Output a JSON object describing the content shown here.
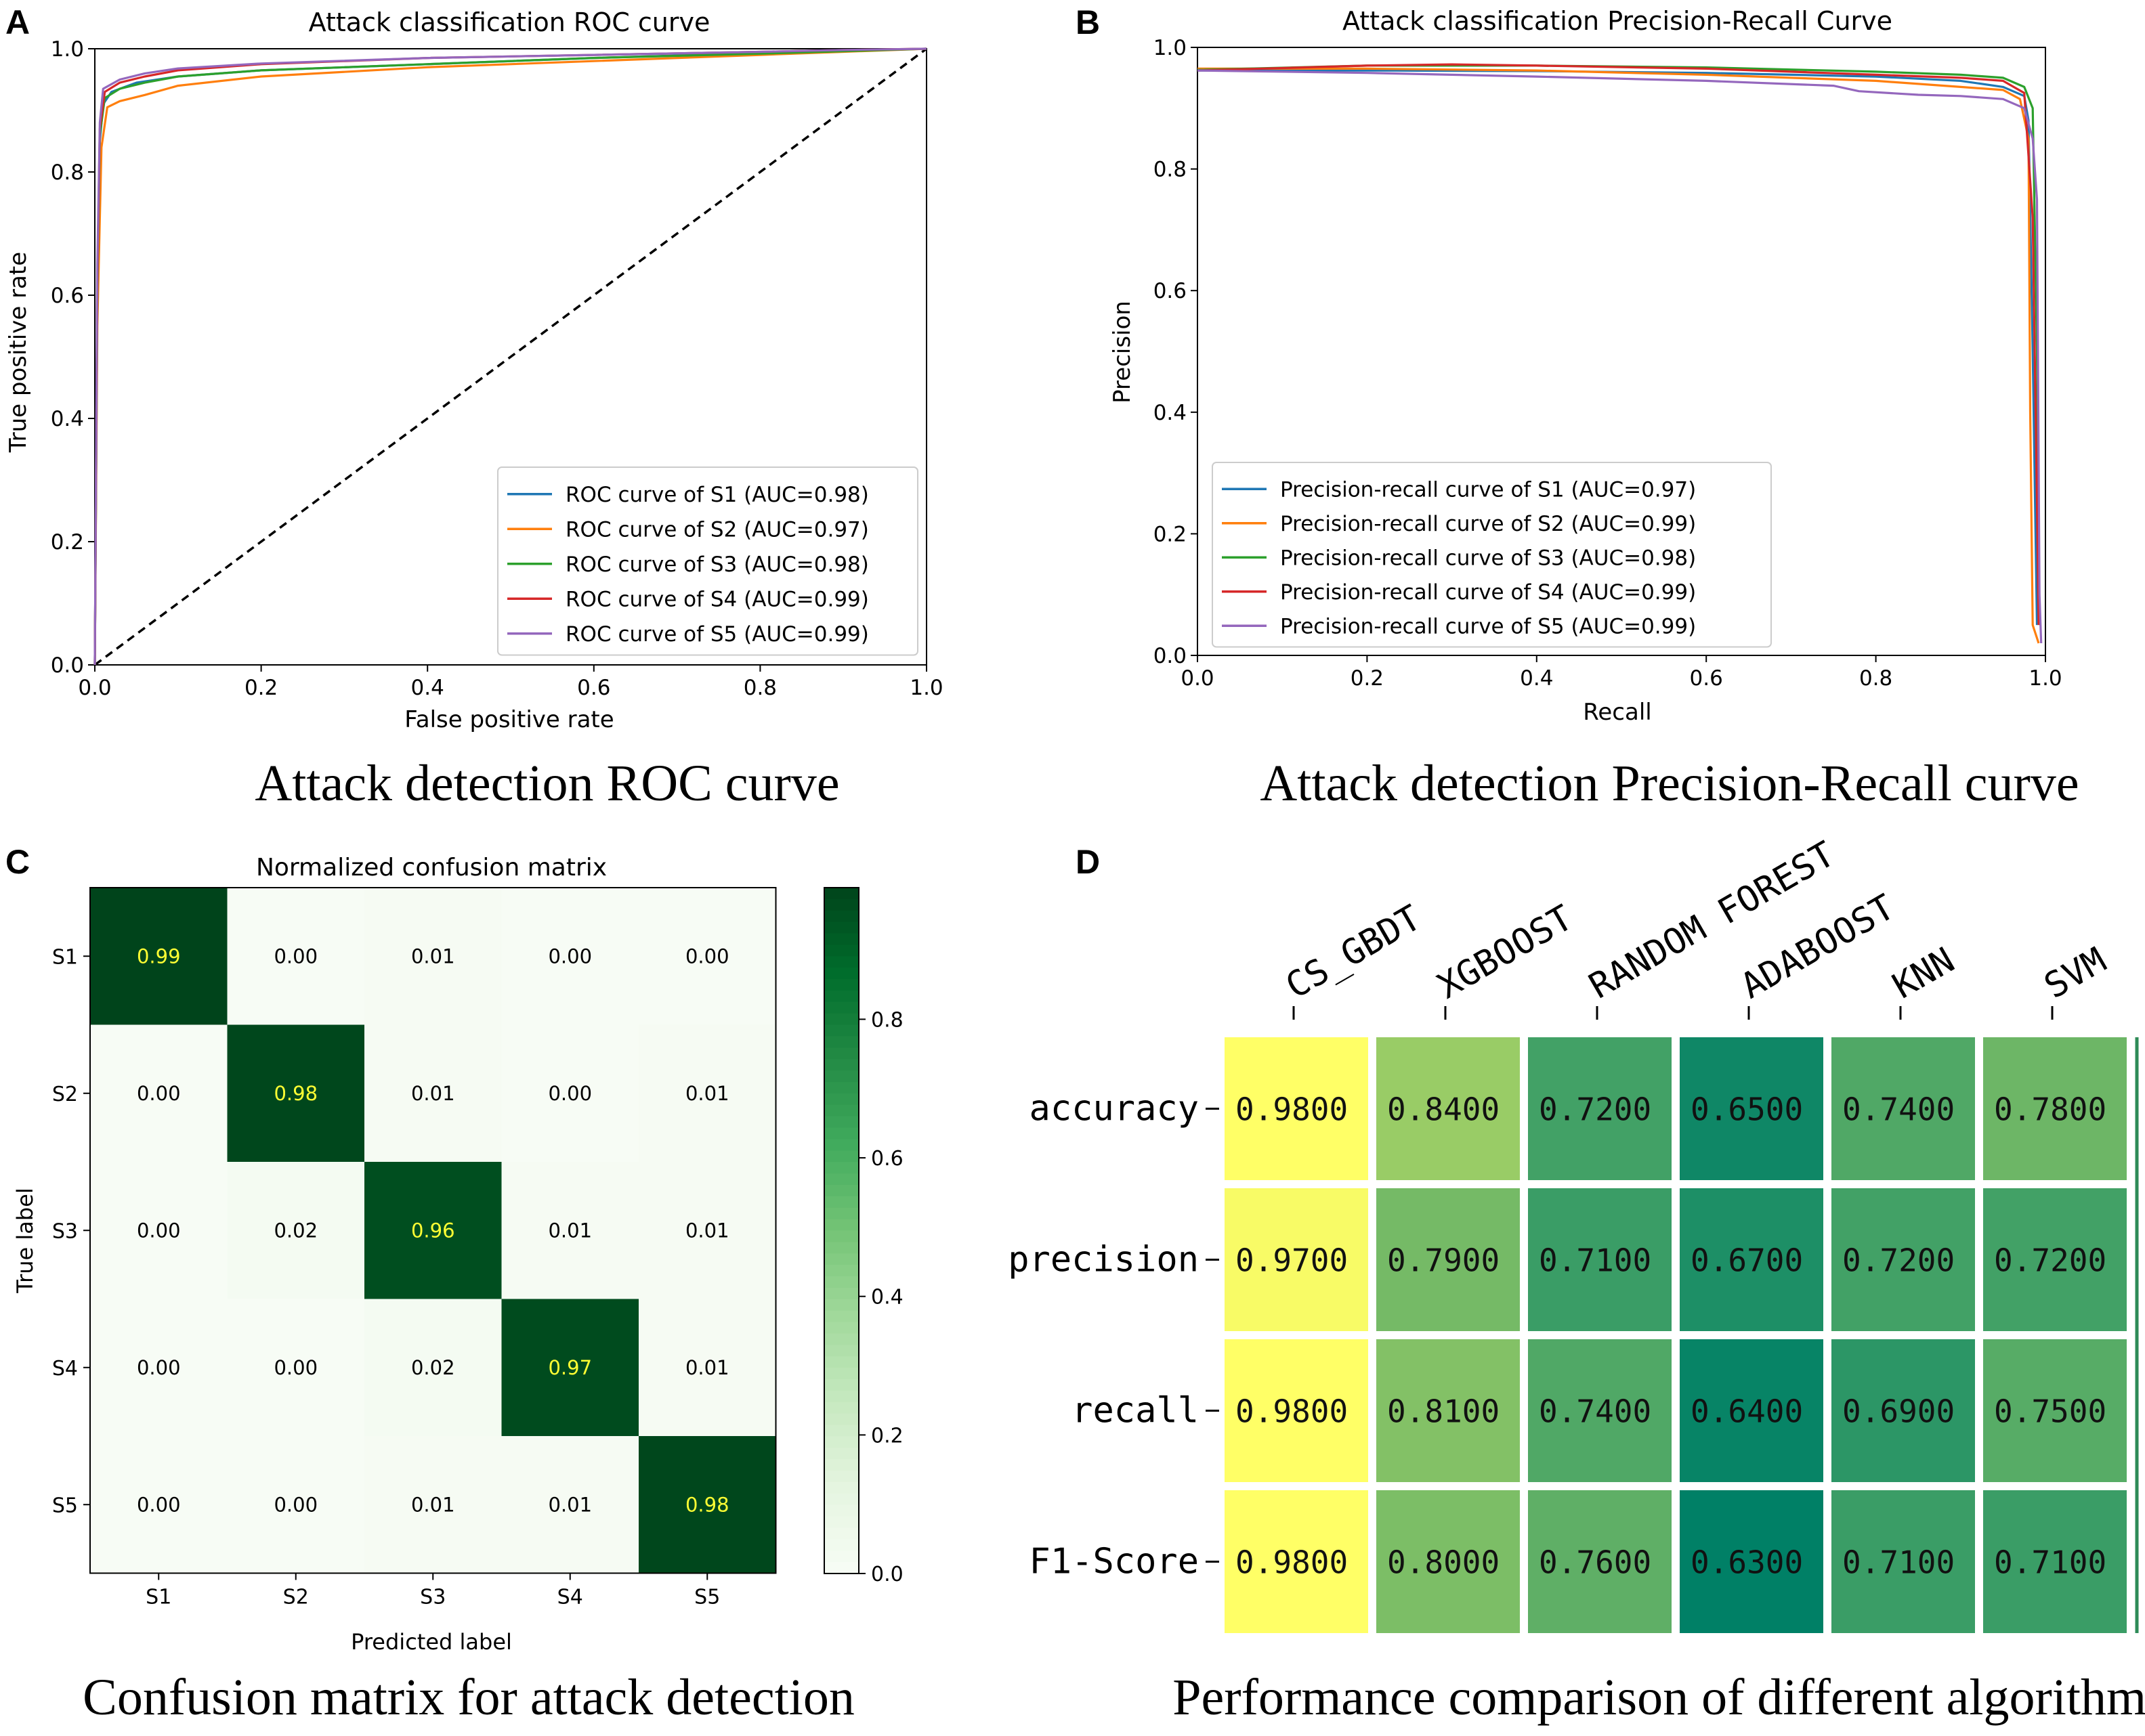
{
  "panels": {
    "A": {
      "letter": "A",
      "caption": "Attack detection ROC curve"
    },
    "B": {
      "letter": "B",
      "caption": "Attack detection Precision-Recall curve"
    },
    "C": {
      "letter": "C",
      "caption": "Confusion matrix for attack detection"
    },
    "D": {
      "letter": "D",
      "caption": "Performance comparison of different algorithms"
    }
  },
  "colors": {
    "S1": "#1f77b4",
    "S2": "#ff7f0e",
    "S3": "#2ca02c",
    "S4": "#d62728",
    "S5": "#9467bd",
    "diagonal": "#000000",
    "cm_dark": "#00441b",
    "cm_light": "#f7fcf5",
    "cm_diag_text": "#ffff33",
    "cm_text": "#000000"
  },
  "chart_data": [
    {
      "id": "A",
      "type": "line",
      "title": "Attack classification ROC curve",
      "xlabel": "False positive rate",
      "ylabel": "True positive rate",
      "xlim": [
        0,
        1
      ],
      "ylim": [
        0,
        1
      ],
      "xticks": [
        "0.0",
        "0.2",
        "0.4",
        "0.6",
        "0.8",
        "1.0"
      ],
      "yticks": [
        "0.0",
        "0.2",
        "0.4",
        "0.6",
        "0.8",
        "1.0"
      ],
      "legend_position": "bottom-right",
      "series": [
        {
          "name": "ROC curve of S1 (AUC=0.98)",
          "color_key": "S1",
          "points": [
            [
              0,
              0
            ],
            [
              0.003,
              0.6
            ],
            [
              0.006,
              0.85
            ],
            [
              0.01,
              0.91
            ],
            [
              0.02,
              0.93
            ],
            [
              0.05,
              0.945
            ],
            [
              0.1,
              0.955
            ],
            [
              0.2,
              0.965
            ],
            [
              0.4,
              0.975
            ],
            [
              0.6,
              0.985
            ],
            [
              0.8,
              0.993
            ],
            [
              0.9,
              0.997
            ],
            [
              1,
              1
            ]
          ]
        },
        {
          "name": "ROC curve of S2 (AUC=0.97)",
          "color_key": "S2",
          "points": [
            [
              0,
              0
            ],
            [
              0.003,
              0.55
            ],
            [
              0.008,
              0.84
            ],
            [
              0.015,
              0.905
            ],
            [
              0.03,
              0.915
            ],
            [
              0.06,
              0.925
            ],
            [
              0.1,
              0.94
            ],
            [
              0.2,
              0.955
            ],
            [
              0.4,
              0.97
            ],
            [
              0.6,
              0.98
            ],
            [
              0.8,
              0.99
            ],
            [
              0.9,
              0.995
            ],
            [
              1,
              1
            ]
          ]
        },
        {
          "name": "ROC curve of S3 (AUC=0.98)",
          "color_key": "S3",
          "points": [
            [
              0,
              0
            ],
            [
              0.003,
              0.6
            ],
            [
              0.006,
              0.86
            ],
            [
              0.012,
              0.92
            ],
            [
              0.03,
              0.935
            ],
            [
              0.06,
              0.945
            ],
            [
              0.1,
              0.955
            ],
            [
              0.2,
              0.965
            ],
            [
              0.4,
              0.975
            ],
            [
              0.6,
              0.985
            ],
            [
              0.8,
              0.992
            ],
            [
              0.9,
              0.996
            ],
            [
              1,
              1
            ]
          ]
        },
        {
          "name": "ROC curve of S4 (AUC=0.99)",
          "color_key": "S4",
          "points": [
            [
              0,
              0
            ],
            [
              0.003,
              0.62
            ],
            [
              0.006,
              0.87
            ],
            [
              0.012,
              0.93
            ],
            [
              0.03,
              0.945
            ],
            [
              0.06,
              0.955
            ],
            [
              0.1,
              0.965
            ],
            [
              0.2,
              0.975
            ],
            [
              0.4,
              0.985
            ],
            [
              0.6,
              0.99
            ],
            [
              0.8,
              0.995
            ],
            [
              0.9,
              0.998
            ],
            [
              1,
              1
            ]
          ]
        },
        {
          "name": "ROC curve of S5 (AUC=0.99)",
          "color_key": "S5",
          "points": [
            [
              0,
              0
            ],
            [
              0.003,
              0.65
            ],
            [
              0.006,
              0.88
            ],
            [
              0.01,
              0.935
            ],
            [
              0.03,
              0.95
            ],
            [
              0.06,
              0.96
            ],
            [
              0.1,
              0.968
            ],
            [
              0.2,
              0.976
            ],
            [
              0.4,
              0.985
            ],
            [
              0.6,
              0.99
            ],
            [
              0.8,
              0.995
            ],
            [
              0.9,
              0.998
            ],
            [
              1,
              1
            ]
          ]
        }
      ]
    },
    {
      "id": "B",
      "type": "line",
      "title": "Attack classification Precision-Recall Curve",
      "xlabel": "Recall",
      "ylabel": "Precision",
      "xlim": [
        0,
        1
      ],
      "ylim": [
        0,
        1
      ],
      "xticks": [
        "0.0",
        "0.2",
        "0.4",
        "0.6",
        "0.8",
        "1.0"
      ],
      "yticks": [
        "0.0",
        "0.2",
        "0.4",
        "0.6",
        "0.8",
        "1.0"
      ],
      "legend_position": "bottom-left",
      "series": [
        {
          "name": "Precision-recall curve of S1 (AUC=0.97)",
          "color_key": "S1",
          "points": [
            [
              0,
              0.962
            ],
            [
              0.2,
              0.962
            ],
            [
              0.4,
              0.961
            ],
            [
              0.6,
              0.958
            ],
            [
              0.8,
              0.952
            ],
            [
              0.9,
              0.945
            ],
            [
              0.95,
              0.935
            ],
            [
              0.975,
              0.92
            ],
            [
              0.98,
              0.88
            ],
            [
              0.985,
              0.5
            ],
            [
              0.99,
              0.05
            ]
          ]
        },
        {
          "name": "Precision-recall curve of S2 (AUC=0.99)",
          "color_key": "S2",
          "points": [
            [
              0,
              0.965
            ],
            [
              0.2,
              0.965
            ],
            [
              0.4,
              0.962
            ],
            [
              0.6,
              0.955
            ],
            [
              0.8,
              0.945
            ],
            [
              0.9,
              0.935
            ],
            [
              0.95,
              0.93
            ],
            [
              0.97,
              0.915
            ],
            [
              0.98,
              0.85
            ],
            [
              0.982,
              0.4
            ],
            [
              0.985,
              0.05
            ],
            [
              0.992,
              0.02
            ]
          ]
        },
        {
          "name": "Precision-recall curve of S3 (AUC=0.98)",
          "color_key": "S3",
          "points": [
            [
              0,
              0.963
            ],
            [
              0.2,
              0.97
            ],
            [
              0.4,
              0.97
            ],
            [
              0.6,
              0.967
            ],
            [
              0.8,
              0.96
            ],
            [
              0.9,
              0.955
            ],
            [
              0.95,
              0.95
            ],
            [
              0.975,
              0.935
            ],
            [
              0.985,
              0.9
            ],
            [
              0.99,
              0.5
            ],
            [
              0.993,
              0.05
            ]
          ]
        },
        {
          "name": "Precision-recall curve of S4 (AUC=0.99)",
          "color_key": "S4",
          "points": [
            [
              0,
              0.962
            ],
            [
              0.2,
              0.97
            ],
            [
              0.3,
              0.972
            ],
            [
              0.4,
              0.97
            ],
            [
              0.6,
              0.965
            ],
            [
              0.8,
              0.955
            ],
            [
              0.9,
              0.95
            ],
            [
              0.95,
              0.945
            ],
            [
              0.975,
              0.925
            ],
            [
              0.985,
              0.72
            ],
            [
              0.99,
              0.25
            ],
            [
              0.992,
              0.05
            ]
          ]
        },
        {
          "name": "Precision-recall curve of S5 (AUC=0.99)",
          "color_key": "S5",
          "points": [
            [
              0,
              0.962
            ],
            [
              0.2,
              0.958
            ],
            [
              0.4,
              0.952
            ],
            [
              0.6,
              0.945
            ],
            [
              0.75,
              0.937
            ],
            [
              0.78,
              0.928
            ],
            [
              0.85,
              0.922
            ],
            [
              0.9,
              0.92
            ],
            [
              0.95,
              0.915
            ],
            [
              0.975,
              0.9
            ],
            [
              0.985,
              0.85
            ],
            [
              0.99,
              0.75
            ],
            [
              0.993,
              0.1
            ],
            [
              0.995,
              0.02
            ]
          ]
        }
      ]
    },
    {
      "id": "C",
      "type": "heatmap",
      "title": "Normalized confusion matrix",
      "xlabel": "Predicted label",
      "ylabel": "True label",
      "labels": [
        "S1",
        "S2",
        "S3",
        "S4",
        "S5"
      ],
      "matrix": [
        [
          0.99,
          0.0,
          0.01,
          0.0,
          0.0
        ],
        [
          0.0,
          0.98,
          0.01,
          0.0,
          0.01
        ],
        [
          0.0,
          0.02,
          0.96,
          0.01,
          0.01
        ],
        [
          0.0,
          0.0,
          0.02,
          0.97,
          0.01
        ],
        [
          0.0,
          0.0,
          0.01,
          0.01,
          0.98
        ]
      ],
      "matrix_text": [
        [
          "0.99",
          "0.00",
          "0.01",
          "0.00",
          "0.00"
        ],
        [
          "0.00",
          "0.98",
          "0.01",
          "0.00",
          "0.01"
        ],
        [
          "0.00",
          "0.02",
          "0.96",
          "0.01",
          "0.01"
        ],
        [
          "0.00",
          "0.00",
          "0.02",
          "0.97",
          "0.01"
        ],
        [
          "0.00",
          "0.00",
          "0.01",
          "0.01",
          "0.98"
        ]
      ],
      "colorbar_range": [
        0,
        0.99
      ],
      "colorbar_ticks": [
        0.0,
        0.2,
        0.4,
        0.6,
        0.8
      ],
      "colorbar_tick_labels": [
        "0.0",
        "0.2",
        "0.4",
        "0.6",
        "0.8"
      ]
    },
    {
      "id": "D",
      "type": "heatmap",
      "title": "",
      "columns": [
        "CS_GBDT",
        "XGBOOST",
        "RANDOM FOREST",
        "ADABOOST",
        "KNN",
        "SVM"
      ],
      "rows": [
        "accuracy",
        "precision",
        "recall",
        "F1-Score"
      ],
      "values": [
        [
          0.98,
          0.84,
          0.72,
          0.65,
          0.74,
          0.78
        ],
        [
          0.97,
          0.79,
          0.71,
          0.67,
          0.72,
          0.72
        ],
        [
          0.98,
          0.81,
          0.74,
          0.64,
          0.69,
          0.75
        ],
        [
          0.98,
          0.8,
          0.76,
          0.63,
          0.71,
          0.71
        ]
      ],
      "value_text": [
        [
          "0.9800",
          "0.8400",
          "0.7200",
          "0.6500",
          "0.7400",
          "0.7800"
        ],
        [
          "0.9700",
          "0.7900",
          "0.7100",
          "0.6700",
          "0.7200",
          "0.7200"
        ],
        [
          "0.9800",
          "0.8100",
          "0.7400",
          "0.6400",
          "0.6900",
          "0.7500"
        ],
        [
          "0.9800",
          "0.8000",
          "0.7600",
          "0.6300",
          "0.7100",
          "0.7100"
        ]
      ],
      "color_range": [
        0.63,
        0.98
      ],
      "colormap": "summer"
    }
  ]
}
